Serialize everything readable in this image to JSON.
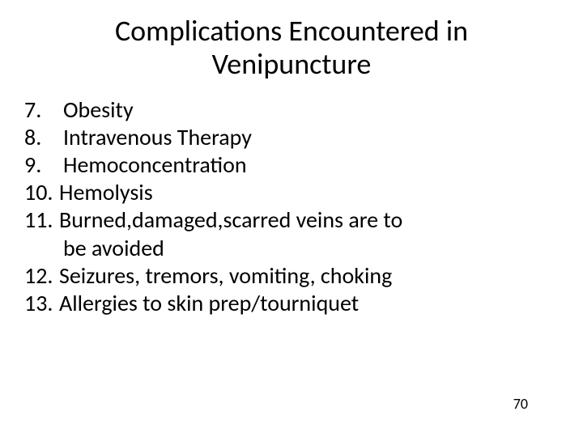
{
  "title": "Complications Encountered in Venipuncture",
  "items": [
    {
      "number": "7.",
      "text": "Obesity"
    },
    {
      "number": "8.",
      "text": "Intravenous Therapy"
    },
    {
      "number": "9.",
      "text": "Hemoconcentration"
    },
    {
      "number": "10.",
      "text": "Hemolysis"
    },
    {
      "number": "11.",
      "text": "Burned,damaged,scarred veins are to",
      "continuation": "be avoided"
    },
    {
      "number": "12.",
      "text": "Seizures, tremors, vomiting, choking"
    },
    {
      "number": "13.",
      "text": "Allergies to skin prep/tourniquet"
    }
  ],
  "page_number": "70",
  "colors": {
    "background": "#ffffff",
    "text": "#000000"
  },
  "typography": {
    "title_fontsize": 36,
    "body_fontsize": 28,
    "pagenum_fontsize": 18,
    "font_family": "Calibri"
  }
}
